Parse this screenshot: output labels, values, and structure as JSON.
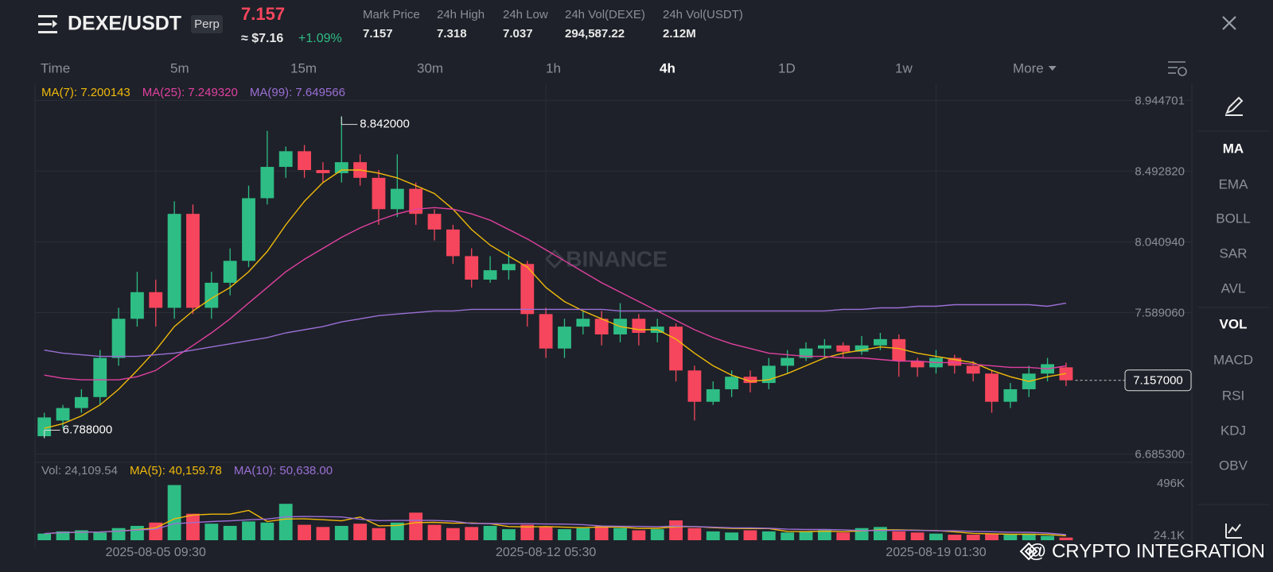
{
  "header": {
    "symbol": "DEXE/USDT",
    "badge": "Perp",
    "price": "7.157",
    "usd": "≈ $7.16",
    "change": "+1.09%",
    "stats": [
      {
        "label": "Mark Price",
        "value": "7.157"
      },
      {
        "label": "24h High",
        "value": "7.318"
      },
      {
        "label": "24h Low",
        "value": "7.037"
      },
      {
        "label": "24h Vol(DEXE)",
        "value": "294,587.22"
      },
      {
        "label": "24h Vol(USDT)",
        "value": "2.12M"
      }
    ]
  },
  "tabs": {
    "items": [
      "Time",
      "5m",
      "15m",
      "30m",
      "1h",
      "4h",
      "1D",
      "1w",
      "More"
    ],
    "active": 5
  },
  "indicators": {
    "items": [
      "MA",
      "EMA",
      "BOLL",
      "SAR",
      "AVL",
      "VOL",
      "MACD",
      "RSI",
      "KDJ",
      "OBV"
    ],
    "active": [
      0,
      5
    ]
  },
  "watermark": "BINANCE",
  "footer": "@ CRYPTO INTEGRATION",
  "chart_data": {
    "type": "candlestick",
    "up_color": "#2ebd85",
    "down_color": "#f6465d",
    "ylim": [
      6.633,
      9.053
    ],
    "yticks": [
      {
        "value": 8.944701,
        "label": "8.944701"
      },
      {
        "value": 8.49282,
        "label": "8.492820"
      },
      {
        "value": 8.04094,
        "label": "8.040940"
      },
      {
        "value": 7.58906,
        "label": "7.589060"
      },
      {
        "value": 6.6853,
        "label": "6.685300"
      }
    ],
    "grid": true,
    "xticks": [
      {
        "value": 6,
        "label": "2025-08-05 09:30"
      },
      {
        "value": 27,
        "label": "2025-08-12 05:30"
      },
      {
        "value": 48,
        "label": "2025-08-19 01:30"
      }
    ],
    "open": [
      6.8,
      6.9,
      6.98,
      7.05,
      7.3,
      7.55,
      7.72,
      7.62,
      8.22,
      7.62,
      7.78,
      7.92,
      8.32,
      8.52,
      8.62,
      8.5,
      8.48,
      8.55,
      8.45,
      8.25,
      8.38,
      8.22,
      8.12,
      7.95,
      7.8,
      7.86,
      7.9,
      7.58,
      7.36,
      7.5,
      7.55,
      7.45,
      7.55,
      7.46,
      7.5,
      7.22,
      7.02,
      7.1,
      7.18,
      7.14,
      7.25,
      7.3,
      7.36,
      7.38,
      7.34,
      7.38,
      7.42,
      7.28,
      7.24,
      7.3,
      7.25,
      7.2,
      7.02,
      7.1,
      7.2,
      7.24
    ],
    "high": [
      6.95,
      7.0,
      7.1,
      7.35,
      7.62,
      7.85,
      7.8,
      8.3,
      8.28,
      7.85,
      8.0,
      8.4,
      8.75,
      8.65,
      8.66,
      8.55,
      8.842,
      8.6,
      8.5,
      8.6,
      8.42,
      8.25,
      8.15,
      8.0,
      7.95,
      7.98,
      7.92,
      7.62,
      7.55,
      7.6,
      7.6,
      7.65,
      7.58,
      7.55,
      7.52,
      7.25,
      7.15,
      7.22,
      7.22,
      7.3,
      7.35,
      7.4,
      7.42,
      7.4,
      7.44,
      7.46,
      7.45,
      7.3,
      7.35,
      7.32,
      7.28,
      7.22,
      7.14,
      7.25,
      7.3,
      7.27
    ],
    "low": [
      6.788,
      6.85,
      6.95,
      7.0,
      7.25,
      7.5,
      7.5,
      7.55,
      7.58,
      7.55,
      7.7,
      7.88,
      8.28,
      8.45,
      8.45,
      8.42,
      8.42,
      8.4,
      8.15,
      8.2,
      8.15,
      8.05,
      7.9,
      7.75,
      7.78,
      7.8,
      7.5,
      7.3,
      7.3,
      7.45,
      7.38,
      7.4,
      7.38,
      7.4,
      7.15,
      6.9,
      7.0,
      7.05,
      7.08,
      7.1,
      7.2,
      7.28,
      7.3,
      7.3,
      7.32,
      7.35,
      7.18,
      7.18,
      7.2,
      7.2,
      7.15,
      6.95,
      6.98,
      7.05,
      7.15,
      7.12
    ],
    "close": [
      6.92,
      6.98,
      7.05,
      7.3,
      7.55,
      7.72,
      7.62,
      8.22,
      7.62,
      7.78,
      7.92,
      8.32,
      8.52,
      8.62,
      8.5,
      8.48,
      8.55,
      8.45,
      8.25,
      8.38,
      8.22,
      8.12,
      7.95,
      7.8,
      7.86,
      7.9,
      7.58,
      7.36,
      7.5,
      7.55,
      7.45,
      7.55,
      7.46,
      7.5,
      7.22,
      7.02,
      7.1,
      7.18,
      7.14,
      7.25,
      7.3,
      7.36,
      7.38,
      7.34,
      7.38,
      7.42,
      7.28,
      7.24,
      7.3,
      7.25,
      7.2,
      7.02,
      7.1,
      7.2,
      7.26,
      7.157
    ],
    "series": [
      {
        "name": "MA(7)",
        "color": "#f0b90b",
        "last_label": "7.200143",
        "values": [
          6.85,
          6.88,
          6.93,
          7.0,
          7.1,
          7.22,
          7.35,
          7.5,
          7.6,
          7.68,
          7.75,
          7.85,
          7.98,
          8.15,
          8.3,
          8.42,
          8.5,
          8.5,
          8.48,
          8.45,
          8.4,
          8.35,
          8.25,
          8.12,
          8.02,
          7.95,
          7.88,
          7.75,
          7.66,
          7.6,
          7.55,
          7.5,
          7.48,
          7.48,
          7.42,
          7.33,
          7.25,
          7.19,
          7.15,
          7.16,
          7.2,
          7.25,
          7.3,
          7.33,
          7.35,
          7.37,
          7.36,
          7.33,
          7.31,
          7.29,
          7.27,
          7.22,
          7.18,
          7.15,
          7.18,
          7.200143
        ]
      },
      {
        "name": "MA(25)",
        "color": "#e040a0",
        "last_label": "7.249320",
        "values": [
          7.19,
          7.17,
          7.16,
          7.16,
          7.16,
          7.18,
          7.22,
          7.3,
          7.38,
          7.46,
          7.55,
          7.65,
          7.75,
          7.85,
          7.93,
          8.0,
          8.07,
          8.13,
          8.18,
          8.22,
          8.25,
          8.26,
          8.25,
          8.22,
          8.18,
          8.12,
          8.06,
          7.99,
          7.92,
          7.85,
          7.78,
          7.72,
          7.66,
          7.6,
          7.54,
          7.48,
          7.43,
          7.39,
          7.36,
          7.33,
          7.32,
          7.31,
          7.31,
          7.3,
          7.3,
          7.29,
          7.28,
          7.28,
          7.27,
          7.27,
          7.26,
          7.25,
          7.24,
          7.24,
          7.23,
          7.24932
        ]
      },
      {
        "name": "MA(99)",
        "color": "#9b6fd6",
        "last_label": "7.649566",
        "values": [
          7.35,
          7.33,
          7.32,
          7.31,
          7.31,
          7.31,
          7.32,
          7.33,
          7.35,
          7.37,
          7.39,
          7.41,
          7.43,
          7.46,
          7.48,
          7.5,
          7.53,
          7.55,
          7.57,
          7.58,
          7.59,
          7.6,
          7.6,
          7.61,
          7.61,
          7.61,
          7.61,
          7.61,
          7.61,
          7.61,
          7.61,
          7.6,
          7.6,
          7.6,
          7.6,
          7.6,
          7.6,
          7.6,
          7.6,
          7.6,
          7.6,
          7.6,
          7.6,
          7.61,
          7.61,
          7.62,
          7.62,
          7.63,
          7.63,
          7.64,
          7.64,
          7.64,
          7.64,
          7.64,
          7.63,
          7.649566
        ]
      }
    ],
    "current_price": {
      "value": 7.157,
      "label": "7.157000"
    },
    "annotations": [
      {
        "kind": "high",
        "value": 8.842,
        "label": "8.842000"
      },
      {
        "kind": "low",
        "value": 6.788,
        "label": "6.788000"
      }
    ],
    "volume": {
      "name": "Vol",
      "last_label": "24,109.54",
      "ylim": [
        0,
        540000
      ],
      "yticks": [
        {
          "value": 496000,
          "label": "496K"
        },
        {
          "value": 24100,
          "label": "24.1K"
        }
      ],
      "values": [
        60000,
        80000,
        90000,
        70000,
        110000,
        130000,
        160000,
        500000,
        240000,
        150000,
        130000,
        170000,
        160000,
        330000,
        140000,
        120000,
        130000,
        150000,
        110000,
        160000,
        250000,
        140000,
        110000,
        120000,
        130000,
        100000,
        140000,
        120000,
        100000,
        110000,
        130000,
        110000,
        90000,
        100000,
        180000,
        110000,
        80000,
        70000,
        90000,
        80000,
        70000,
        80000,
        90000,
        70000,
        110000,
        120000,
        80000,
        70000,
        60000,
        50000,
        50000,
        60000,
        50000,
        60000,
        40000,
        24109.54
      ],
      "series": [
        {
          "name": "MA(5)",
          "color": "#f0b90b",
          "last_label": "40,159.78",
          "values": [
            60000,
            70000,
            73000,
            75000,
            82000,
            96000,
            112000,
            194000,
            228000,
            236000,
            236000,
            270000,
            170000,
            192000,
            194000,
            186000,
            176000,
            210000,
            130000,
            134000,
            160000,
            162000,
            154000,
            156000,
            150000,
            124000,
            120000,
            124000,
            118000,
            114000,
            120000,
            118000,
            108000,
            108000,
            122000,
            124000,
            114000,
            108000,
            106000,
            106000,
            80000,
            78000,
            82000,
            78000,
            84000,
            94000,
            94000,
            90000,
            88000,
            76000,
            62000,
            58000,
            54000,
            54000,
            52000,
            40159.78
          ]
        },
        {
          "name": "MA(10)",
          "color": "#9b6fd6",
          "last_label": "50,638.00",
          "values": [
            60000,
            70000,
            73000,
            75000,
            82000,
            92000,
            100000,
            150000,
            160000,
            169000,
            176000,
            185000,
            192000,
            212000,
            215000,
            214000,
            211000,
            190000,
            178000,
            179000,
            180000,
            179000,
            173000,
            152000,
            151000,
            149000,
            150000,
            147000,
            146000,
            141000,
            129000,
            127000,
            125000,
            123000,
            128000,
            124000,
            118000,
            113000,
            112000,
            109000,
            100000,
            97000,
            97000,
            94000,
            87000,
            88000,
            89000,
            89000,
            86000,
            86000,
            80000,
            77000,
            73000,
            72000,
            65000,
            50638
          ]
        }
      ]
    }
  }
}
